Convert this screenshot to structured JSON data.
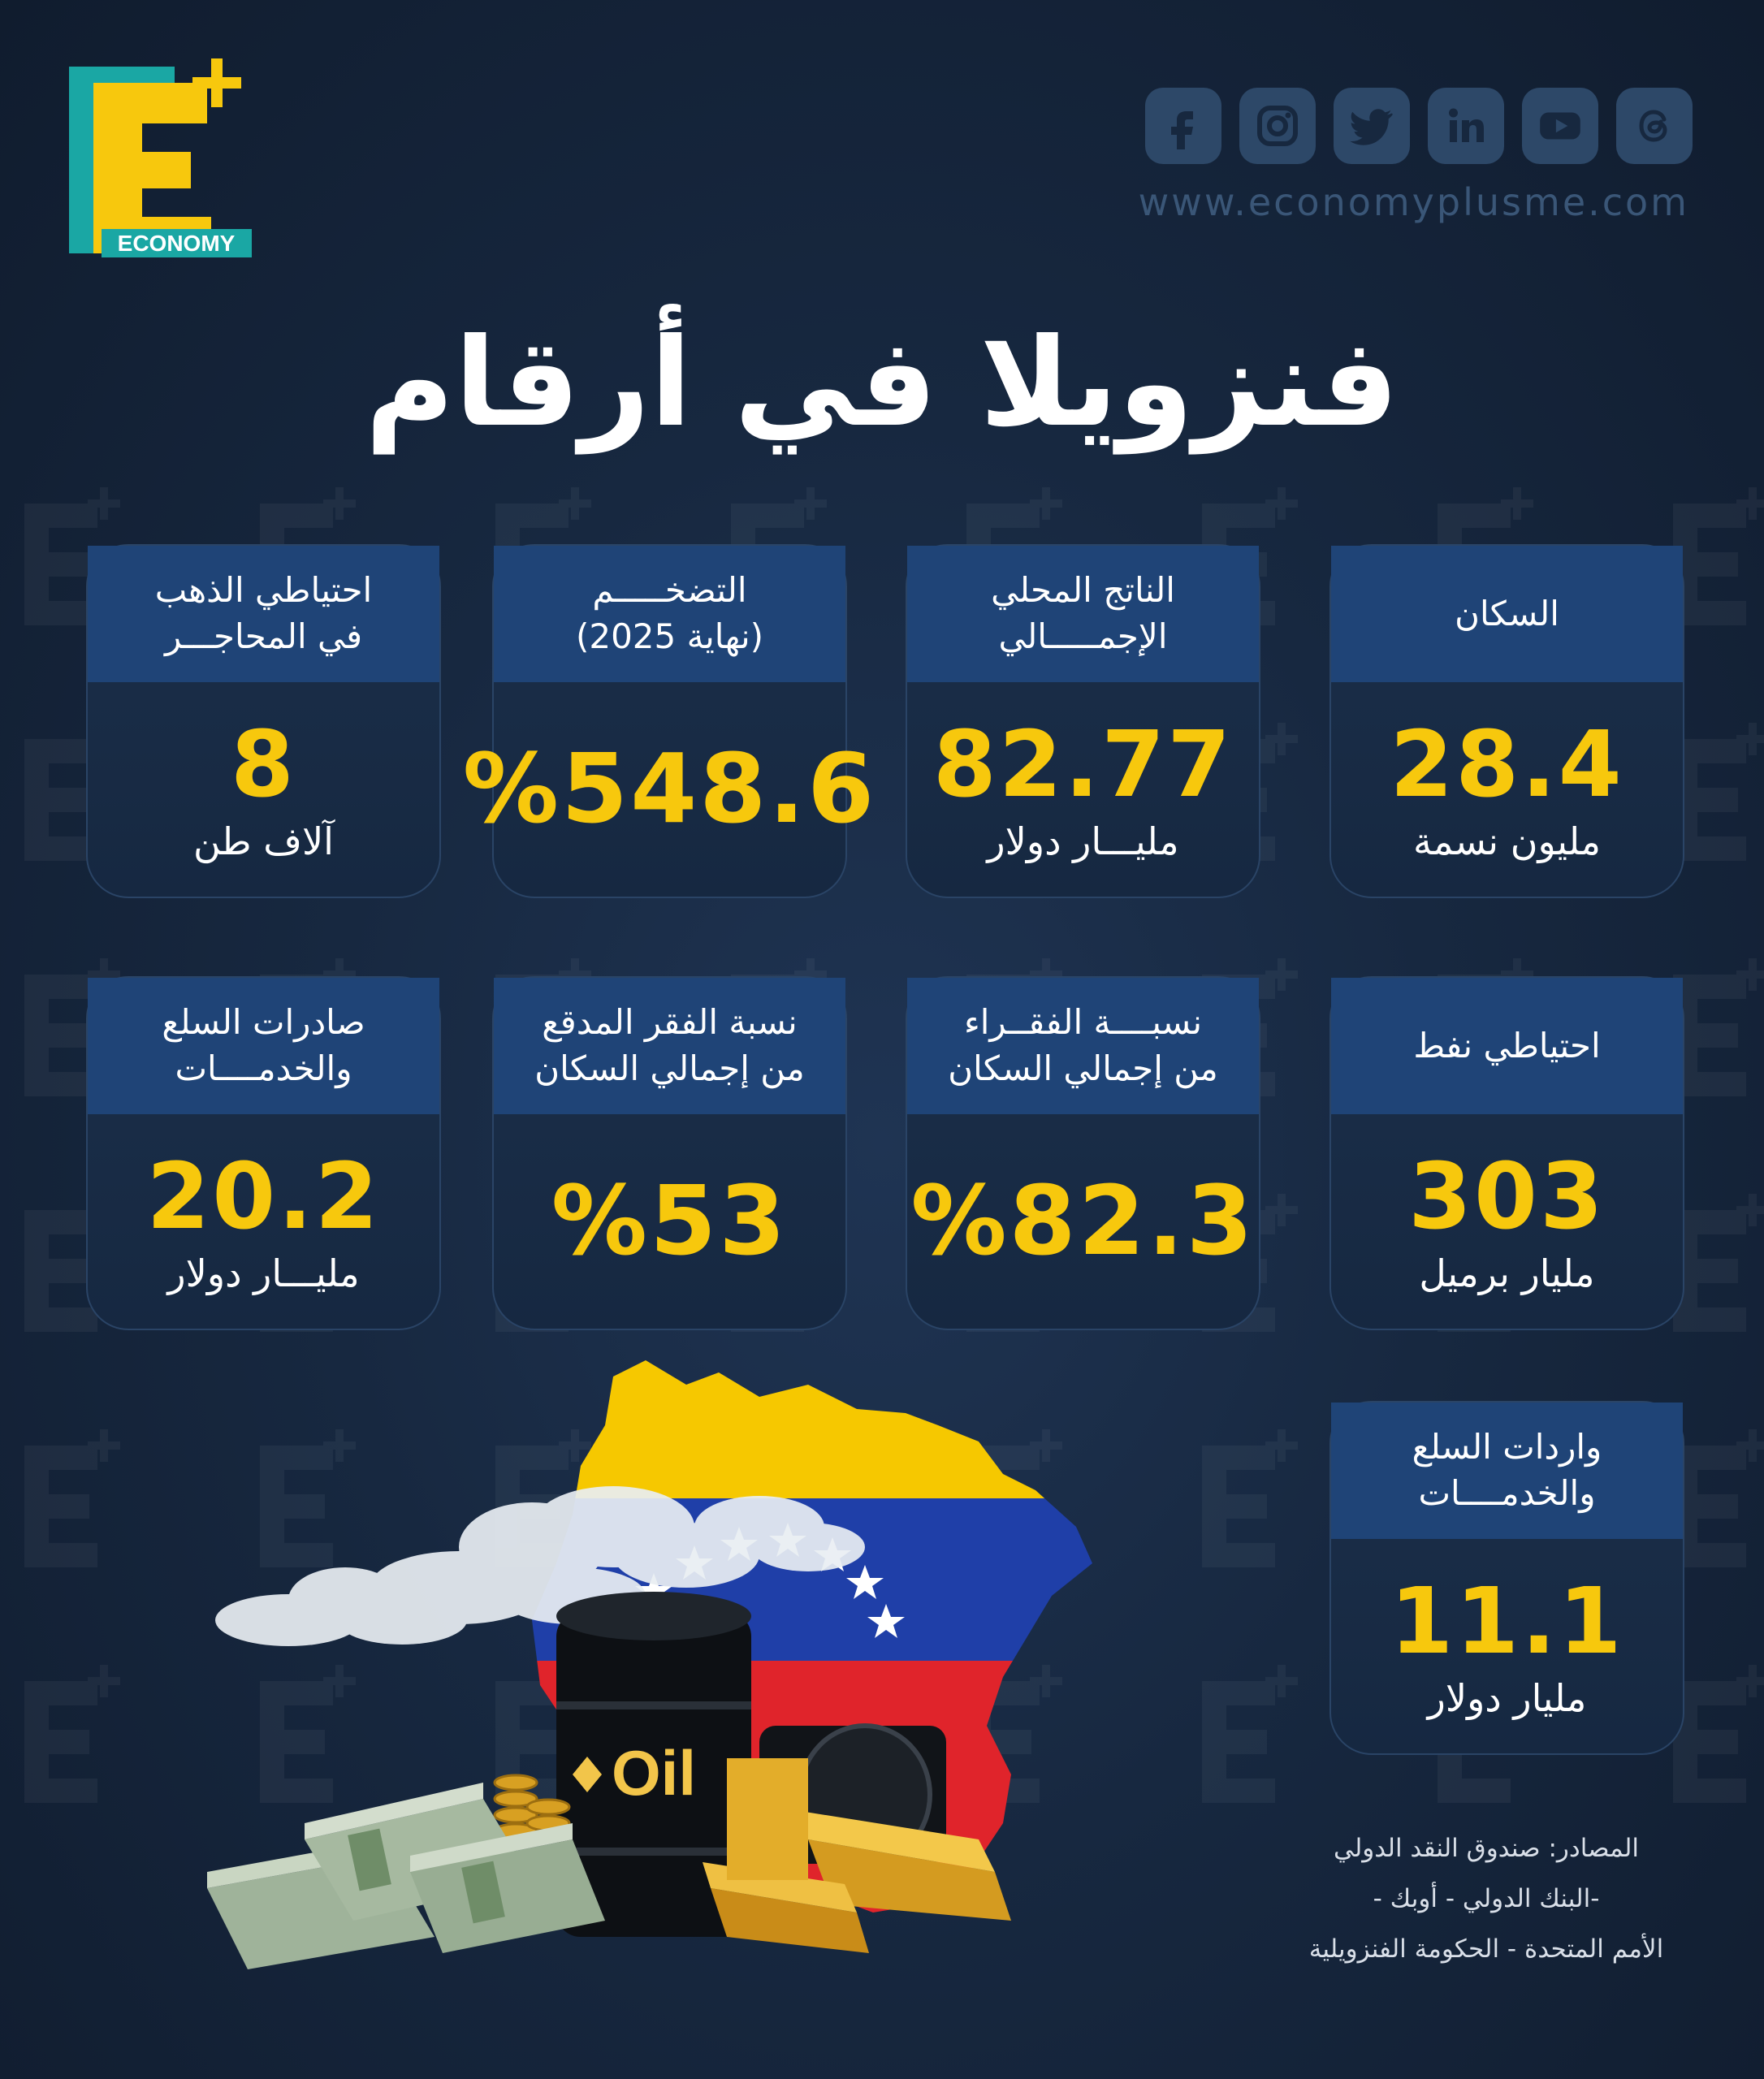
{
  "brand": {
    "logo_letter": "E",
    "logo_text": "ECONOMY",
    "website": "www.economyplusme.com"
  },
  "social": [
    "facebook-icon",
    "instagram-icon",
    "twitter-icon",
    "linkedin-icon",
    "youtube-icon",
    "threads-icon"
  ],
  "title": "فنزويلا في أرقام",
  "cards": [
    {
      "line1": "السكان",
      "line2": "",
      "value": "28.4",
      "unit": "مليون نسمة"
    },
    {
      "line1": "الناتج المحلي",
      "line2": "الإجمـــــالي",
      "value": "82.77",
      "unit": "مليـــار دولار"
    },
    {
      "line1": "التضخـــــم",
      "line2": "(نهاية 2025)",
      "value": "%548.6",
      "unit": ""
    },
    {
      "line1": "احتياطي الذهب",
      "line2": "في المحاجـــر",
      "value": "8",
      "unit": "آلاف طن"
    },
    {
      "line1": "احتياطي نفط",
      "line2": "",
      "value": "303",
      "unit": "مليار برميل"
    },
    {
      "line1": "نسبــــة الفقــراء",
      "line2": "من إجمالي السكان",
      "value": "%82.3",
      "unit": ""
    },
    {
      "line1": "نسبة الفقر المدقع",
      "line2": "من إجمالي السكان",
      "value": "%53",
      "unit": ""
    },
    {
      "line1": "صادرات السلع",
      "line2": "والخدمــــات",
      "value": "20.2",
      "unit": "مليـــار دولار"
    },
    {
      "line1": "واردات السلع",
      "line2": "والخدمــــات",
      "value": "11.1",
      "unit": "مليار دولار"
    }
  ],
  "illustration": {
    "barrel_label": "Oil"
  },
  "sources": {
    "line1": "المصادر: صندوق النقد الدولي",
    "line2": "-البنك الدولي - أوبك -",
    "line3": "الأمم المتحدة - الحكومة الفنزويلية"
  },
  "colors": {
    "accent": "#f7c80d",
    "card_head": "#1f4477",
    "flag_yellow": "#f6c800",
    "flag_blue": "#1f3fa8",
    "flag_red": "#e0242b"
  }
}
